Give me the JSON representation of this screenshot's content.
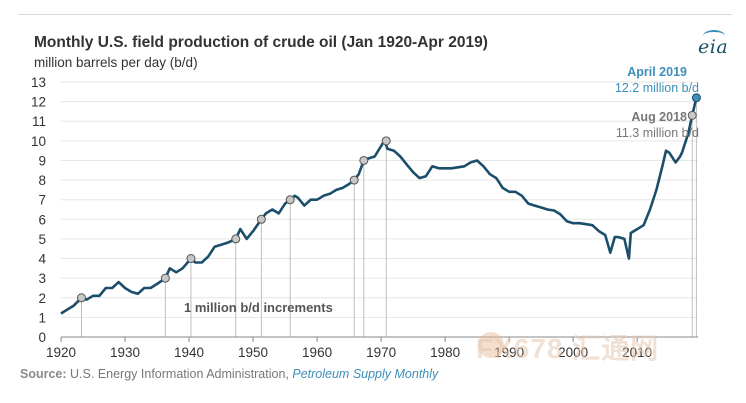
{
  "header": {
    "title": "Monthly U.S. field production of crude oil (Jan 1920-Apr 2019)",
    "subtitle": "million barrels per day (b/d)",
    "logo": "eia"
  },
  "footer": {
    "source_label": "Source:",
    "source_text": "U.S. Energy Information Administration,",
    "source_publication": "Petroleum Supply Monthly"
  },
  "watermark": {
    "text": "FX678 汇通网"
  },
  "colors": {
    "line": "#1b4e6b",
    "highlight": "#3d8fb9",
    "marker": "#c8c8c8",
    "drop_line": "#bfbfbf",
    "grid": "#e6e6e6",
    "axis": "#888888",
    "annotation_gray": "#777777"
  },
  "chart_data": {
    "type": "line",
    "title": "Monthly U.S. field production of crude oil (Jan 1920-Apr 2019)",
    "ylabel": "million barrels per day (b/d)",
    "xlabel": "",
    "xlim": [
      1920,
      2019.5
    ],
    "ylim": [
      0,
      13
    ],
    "x_ticks": [
      1920,
      1930,
      1940,
      1950,
      1960,
      1970,
      1980,
      1990,
      2000,
      2010
    ],
    "y_ticks": [
      0,
      1,
      2,
      3,
      4,
      5,
      6,
      7,
      8,
      9,
      10,
      11,
      12,
      13
    ],
    "grid": "horizontal",
    "series": [
      {
        "x": [
          1920.0,
          1921.0,
          1922.0,
          1923.2,
          1924.0,
          1925.0,
          1926.0,
          1927.0,
          1928.0,
          1929.0,
          1930.0,
          1931.0,
          1932.0,
          1933.0,
          1934.0,
          1935.0,
          1936.3,
          1937.0,
          1938.0,
          1939.0,
          1940.3,
          1941.0,
          1942.0,
          1943.0,
          1944.0,
          1945.0,
          1946.0,
          1947.3,
          1948.0,
          1949.0,
          1950.0,
          1951.3,
          1952.0,
          1953.0,
          1954.0,
          1955.0,
          1955.8,
          1956.5,
          1957.0,
          1958.0,
          1959.0,
          1960.0,
          1961.0,
          1962.0,
          1963.0,
          1964.0,
          1965.0,
          1965.8,
          1966.5,
          1967.3,
          1968.0,
          1969.0,
          1970.5,
          1971.0,
          1972.0,
          1973.0,
          1974.0,
          1975.0,
          1976.0,
          1977.0,
          1978.0,
          1979.0,
          1980.0,
          1981.0,
          1982.0,
          1983.0,
          1984.0,
          1985.0,
          1986.0,
          1987.0,
          1988.0,
          1989.0,
          1990.0,
          1991.0,
          1992.0,
          1993.0,
          1994.0,
          1995.0,
          1996.0,
          1997.0,
          1998.0,
          1999.0,
          2000.0,
          2001.0,
          2002.0,
          2003.0,
          2004.0,
          2005.0,
          2005.8,
          2006.5,
          2007.0,
          2008.0,
          2008.7,
          2009.0,
          2010.0,
          2011.0,
          2012.0,
          2013.0,
          2014.0,
          2014.5,
          2015.0,
          2016.0,
          2016.7,
          2017.0,
          2018.0,
          2018.6,
          2019.25
        ],
        "y": [
          1.2,
          1.4,
          1.6,
          2.0,
          1.9,
          2.1,
          2.1,
          2.5,
          2.5,
          2.8,
          2.5,
          2.3,
          2.2,
          2.5,
          2.5,
          2.7,
          3.0,
          3.5,
          3.3,
          3.5,
          4.0,
          3.8,
          3.8,
          4.1,
          4.6,
          4.7,
          4.8,
          5.0,
          5.5,
          5.0,
          5.4,
          6.0,
          6.3,
          6.5,
          6.3,
          6.8,
          7.0,
          7.2,
          7.1,
          6.7,
          7.0,
          7.0,
          7.2,
          7.3,
          7.5,
          7.6,
          7.8,
          8.0,
          8.3,
          9.0,
          9.1,
          9.2,
          10.0,
          9.6,
          9.5,
          9.2,
          8.8,
          8.4,
          8.1,
          8.2,
          8.7,
          8.6,
          8.6,
          8.6,
          8.65,
          8.7,
          8.9,
          9.0,
          8.7,
          8.3,
          8.1,
          7.6,
          7.4,
          7.4,
          7.2,
          6.8,
          6.7,
          6.6,
          6.5,
          6.45,
          6.25,
          5.9,
          5.8,
          5.8,
          5.75,
          5.7,
          5.4,
          5.2,
          4.3,
          5.1,
          5.1,
          5.0,
          4.0,
          5.3,
          5.5,
          5.7,
          6.5,
          7.5,
          8.8,
          9.5,
          9.4,
          8.9,
          9.2,
          9.4,
          10.4,
          11.3,
          12.2
        ]
      }
    ],
    "increment_markers": [
      {
        "x": 1923.2,
        "y": 2
      },
      {
        "x": 1936.3,
        "y": 3
      },
      {
        "x": 1940.3,
        "y": 4
      },
      {
        "x": 1947.3,
        "y": 5
      },
      {
        "x": 1951.3,
        "y": 6
      },
      {
        "x": 1955.8,
        "y": 7
      },
      {
        "x": 1965.8,
        "y": 8
      },
      {
        "x": 1967.3,
        "y": 9
      },
      {
        "x": 1970.8,
        "y": 10
      }
    ],
    "increment_label": "1 million b/d increments",
    "annotations": [
      {
        "x": 2018.6,
        "y": 11.3,
        "label": "Aug 2018",
        "value": "11.3 million b/d",
        "highlight": false
      },
      {
        "x": 2019.25,
        "y": 12.2,
        "label": "April 2019",
        "value": "12.2 million b/d",
        "highlight": true
      }
    ]
  }
}
